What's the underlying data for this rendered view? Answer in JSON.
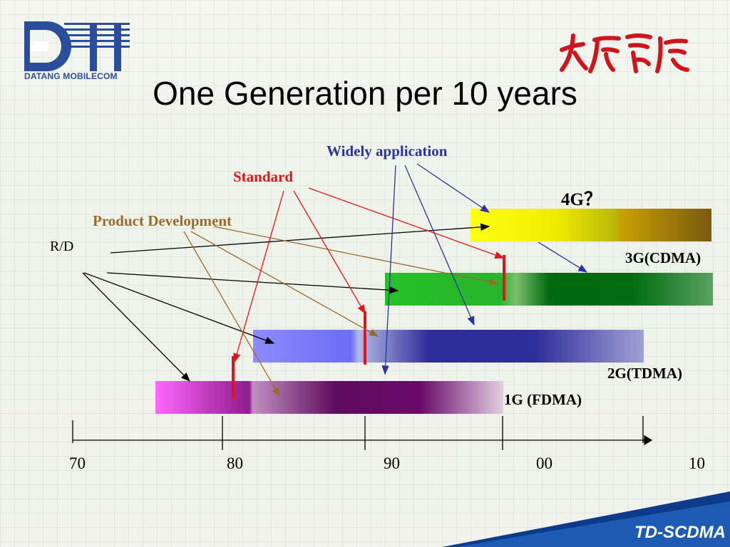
{
  "slide": {
    "title": "One Generation per 10 years",
    "logo_text": "DATANG MOBILECOM",
    "footer_brand": "TD-SCDMA"
  },
  "phases": {
    "widely": "Widely application",
    "standard": "Standard",
    "product": "Product Development",
    "rd": "R/D"
  },
  "generations": {
    "g4": "4G？",
    "g3": "3G(CDMA)",
    "g2": "2G(TDMA)",
    "g1": "1G (FDMA)"
  },
  "timeline": {
    "ticks": [
      "70",
      "80",
      "90",
      "00",
      "10"
    ]
  },
  "colors": {
    "widely": "#2b33a0",
    "standard": "#e0151b",
    "product": "#9a6a2a",
    "rd": "#000000",
    "g4": "#f5f200",
    "g3": "#1fae2a",
    "g2": "#3a3fb0",
    "g1": "#8a127c"
  }
}
